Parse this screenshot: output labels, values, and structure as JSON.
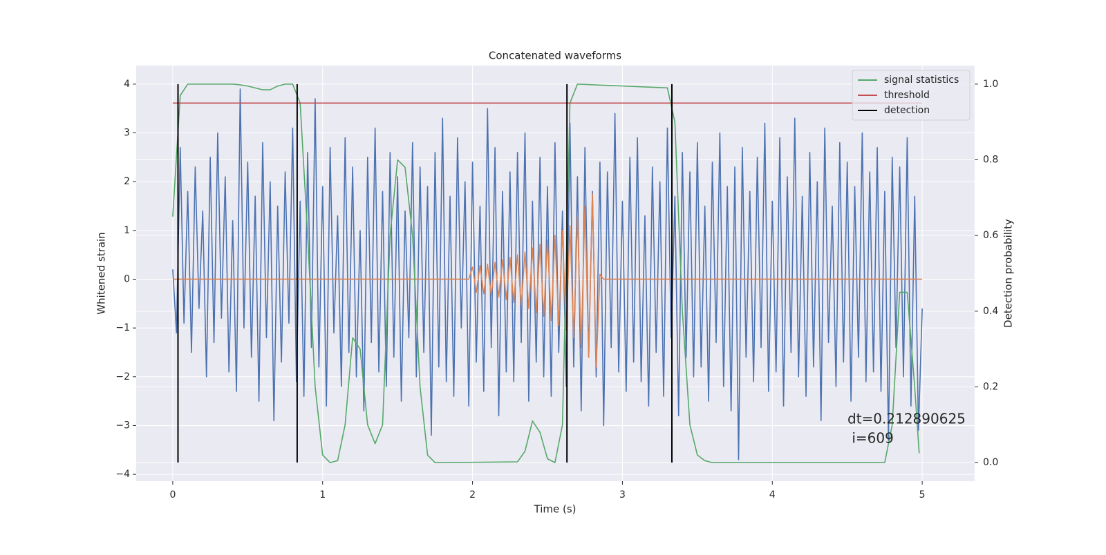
{
  "chart_data": {
    "type": "line",
    "title": "Concatenated waveforms",
    "xlabel": "Time (s)",
    "ylabel": "Whitened strain",
    "y2label": "Detection probability",
    "annotation": [
      "dt=0.212890625",
      " i=609"
    ],
    "grid": true,
    "legend": "upper right",
    "xlim": [
      -0.244,
      5.35
    ],
    "ylim": [
      -4.14,
      4.38
    ],
    "y2lim": [
      -0.049,
      1.049
    ],
    "xticks": [
      0,
      1,
      2,
      3,
      4,
      5
    ],
    "yticks": [
      {
        "value": -4,
        "label": "−4"
      },
      {
        "value": -3,
        "label": "−3"
      },
      {
        "value": -2,
        "label": "−2"
      },
      {
        "value": -1,
        "label": "−1"
      },
      0,
      1,
      2,
      3,
      4
    ],
    "y2ticks": [
      {
        "value": 0,
        "label": "0.0"
      },
      0.2,
      0.4,
      0.6,
      0.8,
      {
        "value": 1,
        "label": "1.0"
      }
    ],
    "x": [
      0,
      0.025,
      0.05,
      0.075,
      0.1,
      0.125,
      0.15,
      0.175,
      0.2,
      0.225,
      0.25,
      0.275,
      0.3,
      0.325,
      0.35,
      0.375,
      0.4,
      0.425,
      0.45,
      0.475,
      0.5,
      0.525,
      0.55,
      0.575,
      0.6,
      0.625,
      0.65,
      0.675,
      0.7,
      0.725,
      0.75,
      0.775,
      0.8,
      0.825,
      0.85,
      0.875,
      0.9,
      0.925,
      0.95,
      0.975,
      1,
      1.025,
      1.05,
      1.075,
      1.1,
      1.125,
      1.15,
      1.175,
      1.2,
      1.225,
      1.25,
      1.275,
      1.3,
      1.325,
      1.35,
      1.375,
      1.4,
      1.425,
      1.45,
      1.475,
      1.5,
      1.525,
      1.55,
      1.575,
      1.6,
      1.625,
      1.65,
      1.675,
      1.7,
      1.725,
      1.75,
      1.775,
      1.8,
      1.825,
      1.85,
      1.875,
      1.9,
      1.925,
      1.95,
      1.975,
      2,
      2.025,
      2.05,
      2.075,
      2.1,
      2.125,
      2.15,
      2.175,
      2.2,
      2.225,
      2.25,
      2.275,
      2.3,
      2.325,
      2.35,
      2.375,
      2.4,
      2.425,
      2.45,
      2.475,
      2.5,
      2.525,
      2.55,
      2.575,
      2.6,
      2.625,
      2.65,
      2.675,
      2.7,
      2.725,
      2.75,
      2.775,
      2.8,
      2.825,
      2.85,
      2.875,
      2.9,
      2.925,
      2.95,
      2.975,
      3,
      3.025,
      3.05,
      3.075,
      3.1,
      3.125,
      3.15,
      3.175,
      3.2,
      3.225,
      3.25,
      3.275,
      3.3,
      3.325,
      3.35,
      3.375,
      3.4,
      3.425,
      3.45,
      3.475,
      3.5,
      3.525,
      3.55,
      3.575,
      3.6,
      3.625,
      3.65,
      3.675,
      3.7,
      3.725,
      3.75,
      3.775,
      3.8,
      3.825,
      3.85,
      3.875,
      3.9,
      3.925,
      3.95,
      3.975,
      4,
      4.025,
      4.05,
      4.075,
      4.1,
      4.125,
      4.15,
      4.175,
      4.2,
      4.225,
      4.25,
      4.275,
      4.3,
      4.325,
      4.35,
      4.375,
      4.4,
      4.425,
      4.45,
      4.475,
      4.5,
      4.525,
      4.55,
      4.575,
      4.6,
      4.625,
      4.65,
      4.675,
      4.7,
      4.725,
      4.75,
      4.775,
      4.8,
      4.825,
      4.85,
      4.875,
      4.9,
      4.925,
      4.95,
      4.975,
      5
    ],
    "series": [
      {
        "color": "#4c72b0",
        "values": [
          0.2,
          -1.1,
          2.7,
          -0.9,
          1.8,
          -1.5,
          2.3,
          -0.6,
          1.4,
          -2.0,
          2.5,
          -1.3,
          3.0,
          -0.8,
          2.1,
          -1.9,
          1.2,
          -2.3,
          3.9,
          -1.0,
          2.4,
          -1.6,
          1.7,
          -2.5,
          2.8,
          -1.2,
          2.0,
          -2.9,
          1.5,
          -1.7,
          2.2,
          -0.9,
          3.1,
          -2.1,
          1.6,
          -2.4,
          2.6,
          -1.4,
          3.7,
          -1.8,
          1.9,
          -2.6,
          2.7,
          -1.1,
          1.3,
          -2.2,
          2.9,
          -1.5,
          2.3,
          -2.0,
          1.0,
          -2.7,
          2.5,
          -1.3,
          3.1,
          -1.9,
          1.8,
          -2.2,
          2.6,
          -1.6,
          2.1,
          -2.5,
          1.4,
          -1.2,
          2.8,
          -2.0,
          2.3,
          -1.5,
          1.9,
          -3.2,
          2.6,
          -1.8,
          3.3,
          -2.1,
          1.7,
          -2.4,
          2.9,
          -1.0,
          2.0,
          -2.6,
          2.4,
          -1.7,
          1.5,
          -2.3,
          3.5,
          -1.4,
          2.7,
          -2.8,
          1.8,
          -1.9,
          2.2,
          -2.1,
          2.6,
          -1.3,
          3.0,
          -2.5,
          1.6,
          -1.7,
          2.5,
          -2.0,
          1.9,
          -2.4,
          2.8,
          -1.5,
          1.4,
          -2.2,
          3.2,
          -1.8,
          2.1,
          -2.7,
          2.7,
          -1.6,
          1.8,
          -2.0,
          2.4,
          -3.0,
          2.2,
          -1.4,
          3.4,
          -1.9,
          1.6,
          -2.3,
          2.5,
          -1.7,
          2.9,
          -2.1,
          1.3,
          -2.6,
          2.3,
          -1.5,
          2.0,
          -2.4,
          3.1,
          -1.2,
          1.7,
          -2.8,
          2.6,
          -1.6,
          2.2,
          -2.0,
          2.8,
          -1.8,
          1.5,
          -2.5,
          2.4,
          -1.3,
          3.0,
          -2.2,
          1.9,
          -2.7,
          2.3,
          -3.7,
          2.7,
          -1.6,
          1.8,
          -2.1,
          2.5,
          -1.4,
          3.2,
          -2.3,
          1.6,
          -1.9,
          2.9,
          -2.6,
          2.1,
          -1.5,
          3.3,
          -2.0,
          1.7,
          -2.4,
          2.6,
          -1.8,
          2.0,
          -2.9,
          3.1,
          -1.3,
          1.5,
          -2.2,
          2.8,
          -1.7,
          2.4,
          -2.5,
          1.9,
          -1.6,
          3.0,
          -2.1,
          2.2,
          -1.9,
          2.7,
          -2.3,
          1.8,
          -3.3,
          2.5,
          -1.4,
          2.3,
          -2.0,
          2.9,
          -2.6,
          1.7,
          -3.1,
          -0.6
        ]
      },
      {
        "color": "#dd8452",
        "values": [
          0,
          0,
          0,
          0,
          0,
          0,
          0,
          0,
          0,
          0,
          0,
          0,
          0,
          0,
          0,
          0,
          0,
          0,
          0,
          0,
          0,
          0,
          0,
          0,
          0,
          0,
          0,
          0,
          0,
          0,
          0,
          0,
          0,
          0,
          0,
          0,
          0,
          0,
          0,
          0,
          0,
          0,
          0,
          0,
          0,
          0,
          0,
          0,
          0,
          0,
          0,
          0,
          0,
          0,
          0,
          0,
          0,
          0,
          0,
          0,
          0,
          0,
          0,
          0,
          0,
          0,
          0,
          0,
          0,
          0,
          0,
          0,
          0,
          0,
          0,
          0,
          0,
          0,
          0,
          0,
          0.25,
          -0.27,
          0.28,
          -0.3,
          0.31,
          -0.33,
          0.35,
          -0.37,
          0.4,
          -0.42,
          0.45,
          -0.48,
          0.5,
          -0.53,
          0.56,
          -0.6,
          0.64,
          -0.68,
          0.72,
          -0.76,
          0.8,
          -0.85,
          0.9,
          -0.95,
          1.0,
          -1.05,
          1.1,
          -1.2,
          1.3,
          -1.4,
          1.5,
          -1.6,
          1.75,
          -1.8,
          0.1,
          0,
          0,
          0,
          0,
          0,
          0,
          0,
          0,
          0,
          0,
          0,
          0,
          0,
          0,
          0,
          0,
          0,
          0,
          0,
          0,
          0,
          0,
          0,
          0,
          0,
          0,
          0,
          0,
          0,
          0,
          0,
          0,
          0,
          0,
          0,
          0,
          0,
          0,
          0,
          0,
          0,
          0,
          0,
          0,
          0,
          0,
          0,
          0,
          0,
          0,
          0,
          0,
          0,
          0,
          0,
          0,
          0,
          0,
          0,
          0,
          0,
          0,
          0,
          0,
          0,
          0,
          0,
          0,
          0,
          0,
          0,
          0,
          0,
          0,
          0,
          0,
          0,
          0,
          0,
          0,
          0,
          0,
          0,
          0,
          0,
          0
        ]
      },
      {
        "name": "signal statistics",
        "color": "#55a868",
        "axis": "y2",
        "x": [
          0,
          0.05,
          0.1,
          0.15,
          0.2,
          0.25,
          0.3,
          0.35,
          0.4,
          0.45,
          0.5,
          0.55,
          0.6,
          0.65,
          0.7,
          0.75,
          0.8,
          0.85,
          0.9,
          0.95,
          1,
          1.05,
          1.1,
          1.15,
          1.2,
          1.25,
          1.3,
          1.35,
          1.4,
          1.45,
          1.5,
          1.55,
          1.6,
          1.65,
          1.7,
          1.75,
          1.8,
          2.3,
          2.35,
          2.4,
          2.45,
          2.5,
          2.55,
          2.6,
          2.65,
          2.7,
          3.3,
          3.35,
          3.4,
          3.45,
          3.5,
          3.55,
          3.6,
          4.75,
          4.8,
          4.85,
          4.9,
          4.95,
          4.98
        ],
        "values": [
          0.65,
          0.97,
          1.0,
          1.0,
          1.0,
          1.0,
          1.0,
          1.0,
          1.0,
          0.998,
          0.995,
          0.99,
          0.985,
          0.985,
          0.995,
          1.0,
          1.0,
          0.95,
          0.6,
          0.2,
          0.02,
          0.0,
          0.005,
          0.1,
          0.33,
          0.3,
          0.1,
          0.05,
          0.1,
          0.6,
          0.8,
          0.78,
          0.6,
          0.2,
          0.02,
          0.0,
          0.0,
          0.002,
          0.03,
          0.11,
          0.08,
          0.01,
          0.0,
          0.1,
          0.95,
          1.0,
          0.99,
          0.9,
          0.4,
          0.1,
          0.02,
          0.005,
          0.0,
          0.0,
          0.1,
          0.45,
          0.45,
          0.2,
          0.025
        ]
      },
      {
        "name": "threshold",
        "color": "#c44e52",
        "axis": "y2",
        "x": [
          0,
          5
        ],
        "values": [
          0.95,
          0.95
        ]
      }
    ],
    "vlines": {
      "name": "detection",
      "color": "#000000",
      "axis": "y2",
      "x": [
        0.035,
        0.83,
        2.63,
        3.33
      ],
      "ymin": 0,
      "ymax": 1
    }
  }
}
